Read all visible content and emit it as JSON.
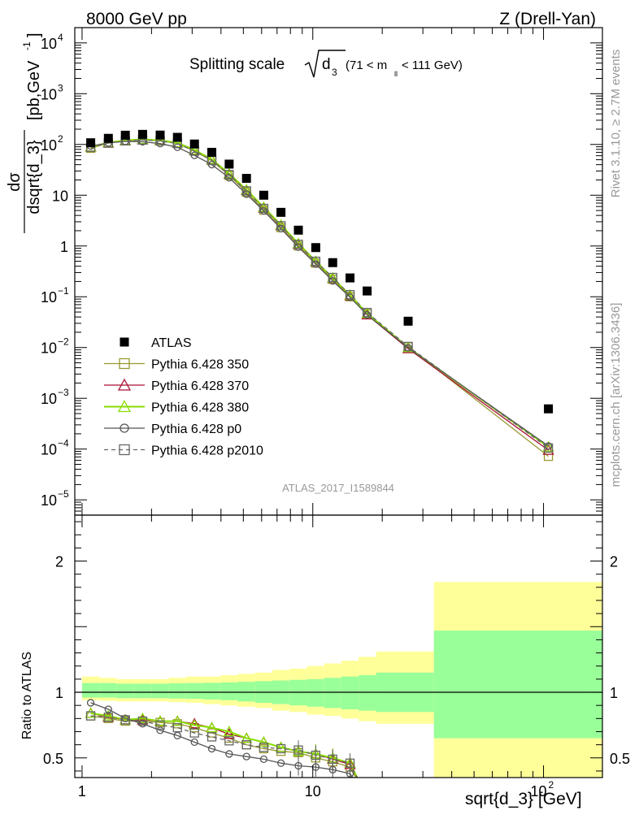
{
  "header": {
    "left": "8000 GeV pp",
    "right": "Z (Drell-Yan)"
  },
  "title": {
    "main": "Splitting scale",
    "sym": "d",
    "sub": "3",
    "cut_open": "(71 < m",
    "cut_sub": "ll",
    "cut_close": " < 111 GeV)"
  },
  "ylabel": {
    "num": "dσ",
    "den": "dsqrt{d_3}",
    "units_open": "[pb,GeV",
    "units_exp": "-1",
    "units_close": "]"
  },
  "ratio_ylabel": "Ratio to ATLAS",
  "xlabel": "sqrt{d_3} [GeV]",
  "side": {
    "rivet": "Rivet 3.1.10, ≥ 2.7M events",
    "mcplots": "mcplots.cern.ch [arXiv:1306.3436]"
  },
  "analysis_id": "ATLAS_2017_I1589844",
  "colors": {
    "data": "#000000",
    "p350": "#999933",
    "p370": "#aa1133",
    "p380": "#88dd00",
    "p0": "#555555",
    "p2010": "#666666",
    "band_inner": "#99ff99",
    "band_outer": "#ffff99"
  },
  "chart_data": {
    "type": "line",
    "xscale": "log",
    "yscale": "log",
    "xlim": [
      0.93,
      180
    ],
    "ylim": [
      5e-06,
      20000.0
    ],
    "ratio_ylim": [
      0.35,
      2.35
    ],
    "main_yticks": [
      {
        "v": 10000.0,
        "l": "10",
        "e": "4"
      },
      {
        "v": 1000.0,
        "l": "10",
        "e": "3"
      },
      {
        "v": 100.0,
        "l": "10",
        "e": "2"
      },
      {
        "v": 10,
        "l": "10",
        "e": ""
      },
      {
        "v": 1,
        "l": "1",
        "e": ""
      },
      {
        "v": 0.1,
        "l": "10",
        "e": "−1"
      },
      {
        "v": 0.01,
        "l": "10",
        "e": "−2"
      },
      {
        "v": 0.001,
        "l": "10",
        "e": "−3"
      },
      {
        "v": 0.0001,
        "l": "10",
        "e": "−4"
      },
      {
        "v": 1e-05,
        "l": "10",
        "e": "−5"
      }
    ],
    "ratio_yticks": [
      {
        "v": 2,
        "l": "2"
      },
      {
        "v": 1,
        "l": "1"
      },
      {
        "v": 0.5,
        "l": "0.5"
      }
    ],
    "xticks": [
      {
        "v": 1,
        "l": "1",
        "e": ""
      },
      {
        "v": 10,
        "l": "10",
        "e": ""
      },
      {
        "v": 100,
        "l": "10",
        "e": "2"
      }
    ],
    "bin_edges": [
      1.0,
      1.19,
      1.41,
      1.68,
      2.0,
      2.37,
      2.82,
      3.35,
      3.98,
      4.73,
      5.62,
      6.68,
      7.94,
      9.44,
      11.2,
      13.3,
      15.8,
      18.8,
      33.5,
      180.0
    ],
    "data": {
      "name": "ATLAS",
      "x": [
        1.09,
        1.3,
        1.54,
        1.83,
        2.18,
        2.59,
        3.07,
        3.65,
        4.34,
        5.16,
        6.13,
        7.28,
        8.66,
        10.3,
        12.2,
        14.5,
        17.2,
        25.9,
        105.0
      ],
      "y": [
        108,
        132,
        152,
        158,
        153,
        138,
        102,
        70,
        41,
        21.5,
        10.0,
        4.6,
        2.05,
        0.93,
        0.47,
        0.235,
        0.13,
        0.033,
        0.00062
      ]
    },
    "band": {
      "inner_up": [
        1.07,
        1.07,
        1.065,
        1.065,
        1.065,
        1.068,
        1.07,
        1.072,
        1.075,
        1.08,
        1.085,
        1.09,
        1.095,
        1.1,
        1.11,
        1.12,
        1.13,
        1.15,
        1.47
      ],
      "inner_dn": [
        0.96,
        0.96,
        0.955,
        0.955,
        0.955,
        0.952,
        0.95,
        0.945,
        0.94,
        0.93,
        0.92,
        0.91,
        0.9,
        0.89,
        0.88,
        0.87,
        0.86,
        0.85,
        0.65
      ],
      "outer_up": [
        1.12,
        1.11,
        1.1,
        1.1,
        1.1,
        1.11,
        1.12,
        1.12,
        1.13,
        1.14,
        1.15,
        1.17,
        1.18,
        1.2,
        1.22,
        1.24,
        1.27,
        1.31,
        1.84
      ],
      "outer_dn": [
        0.94,
        0.935,
        0.93,
        0.93,
        0.93,
        0.925,
        0.92,
        0.91,
        0.9,
        0.89,
        0.88,
        0.86,
        0.85,
        0.83,
        0.82,
        0.8,
        0.78,
        0.76,
        0.35
      ]
    },
    "series": [
      {
        "name": "Pythia 6.428 350",
        "key": "p350",
        "marker": "square",
        "dash": false,
        "x": [
          1.09,
          1.3,
          1.54,
          1.83,
          2.18,
          2.59,
          3.07,
          3.65,
          4.34,
          5.16,
          6.13,
          7.28,
          8.66,
          10.3,
          12.2,
          14.5,
          17.2,
          25.9,
          105.0
        ],
        "y": [
          84,
          106,
          118,
          123,
          118,
          105,
          74,
          48,
          24.5,
          11.5,
          5.1,
          2.3,
          1.0,
          0.46,
          0.22,
          0.1,
          0.046,
          0.0103,
          7.2e-05
        ],
        "ratio": [
          0.82,
          0.8,
          0.78,
          0.78,
          0.77,
          0.76,
          0.73,
          0.69,
          0.65,
          0.6,
          0.57,
          0.55,
          0.54,
          0.5,
          0.47,
          0.43
        ]
      },
      {
        "name": "Pythia 6.428 370",
        "key": "p370",
        "marker": "triangle",
        "dash": false,
        "x": [
          1.09,
          1.3,
          1.54,
          1.83,
          2.18,
          2.59,
          3.07,
          3.65,
          4.34,
          5.16,
          6.13,
          7.28,
          8.66,
          10.3,
          12.2,
          14.5,
          17.2,
          25.9,
          105.0
        ],
        "y": [
          89,
          107,
          118,
          124,
          119,
          107,
          77,
          50,
          26,
          12.5,
          5.6,
          2.5,
          1.08,
          0.49,
          0.23,
          0.105,
          0.044,
          0.0095,
          9.5e-05
        ],
        "ratio": [
          0.84,
          0.81,
          0.79,
          0.79,
          0.78,
          0.78,
          0.76,
          0.73,
          0.68,
          0.65,
          0.62,
          0.58,
          0.55,
          0.53,
          0.49,
          0.45
        ]
      },
      {
        "name": "Pythia 6.428 380",
        "key": "p380",
        "marker": "triangle",
        "dash": false,
        "x": [
          1.09,
          1.3,
          1.54,
          1.83,
          2.18,
          2.59,
          3.07,
          3.65,
          4.34,
          5.16,
          6.13,
          7.28,
          8.66,
          10.3,
          12.2,
          14.5,
          17.2,
          25.9,
          105.0
        ],
        "y": [
          89,
          109,
          120,
          126,
          120,
          108,
          78,
          51,
          26.5,
          12.8,
          5.8,
          2.6,
          1.12,
          0.5,
          0.235,
          0.108,
          0.047,
          0.01,
          0.00011
        ],
        "ratio": [
          0.84,
          0.82,
          0.79,
          0.8,
          0.78,
          0.78,
          0.75,
          0.73,
          0.7,
          0.65,
          0.62,
          0.58,
          0.55,
          0.53,
          0.5,
          0.46
        ]
      },
      {
        "name": "Pythia 6.428 p0",
        "key": "p0",
        "marker": "circle",
        "dash": false,
        "x": [
          1.09,
          1.3,
          1.54,
          1.83,
          2.18,
          2.59,
          3.07,
          3.65,
          4.34,
          5.16,
          6.13,
          7.28,
          8.66,
          10.3,
          12.2,
          14.5,
          17.2,
          25.9,
          105.0
        ],
        "y": [
          93,
          107,
          115,
          113,
          104,
          88,
          61,
          40,
          22,
          10.5,
          4.9,
          2.2,
          0.95,
          0.44,
          0.205,
          0.098,
          0.044,
          0.0099,
          0.000115
        ],
        "ratio": [
          0.92,
          0.87,
          0.8,
          0.76,
          0.71,
          0.67,
          0.62,
          0.57,
          0.53,
          0.51,
          0.49,
          0.46,
          0.44,
          0.43,
          0.41,
          0.38
        ]
      },
      {
        "name": "Pythia 6.428 p2010",
        "key": "p2010",
        "marker": "square",
        "dash": true,
        "x": [
          1.09,
          1.3,
          1.54,
          1.83,
          2.18,
          2.59,
          3.07,
          3.65,
          4.34,
          5.16,
          6.13,
          7.28,
          8.66,
          10.3,
          12.2,
          14.5,
          17.2,
          25.9,
          105.0
        ],
        "y": [
          88,
          107,
          118,
          122,
          117,
          104,
          74,
          49,
          25.5,
          12.2,
          5.5,
          2.5,
          1.08,
          0.5,
          0.24,
          0.11,
          0.049,
          0.0105,
          0.000105
        ],
        "ratio": [
          0.82,
          0.81,
          0.79,
          0.78,
          0.75,
          0.73,
          0.69,
          0.66,
          0.63,
          0.6,
          0.58,
          0.57,
          0.56,
          0.52,
          0.49,
          0.46
        ]
      }
    ]
  }
}
